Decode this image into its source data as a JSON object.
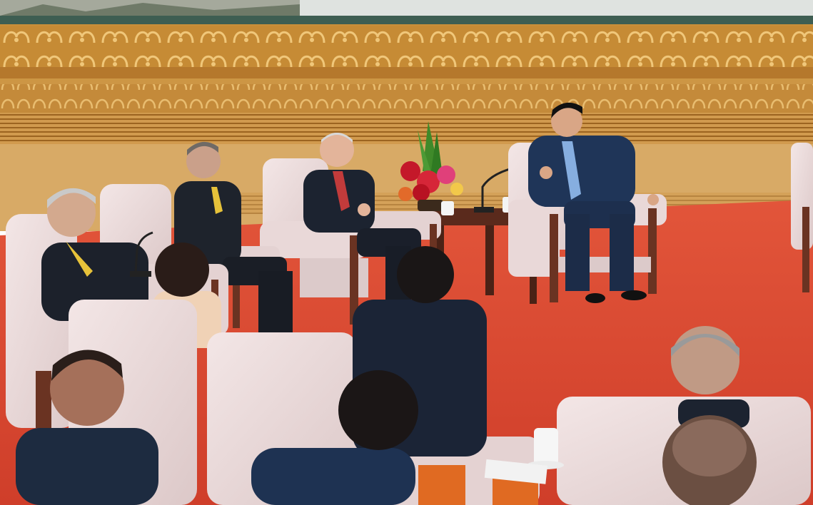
{
  "scene": {
    "description_kind": "photograph",
    "colors": {
      "wall_frieze": "#c8903a",
      "wall_panel": "#d9a860",
      "carpet": "#d8452e",
      "armchair": "#ecdcdc",
      "suit": "#1c2330",
      "suit_blue": "#1f3558",
      "table_wood": "#5a2a1c",
      "flowers_red": "#c4182a",
      "flowers_green": "#3f8a2a"
    },
    "icons": [
      "microphone-icon",
      "teacup-icon",
      "flower-arrangement-icon",
      "name-card-icon"
    ]
  }
}
